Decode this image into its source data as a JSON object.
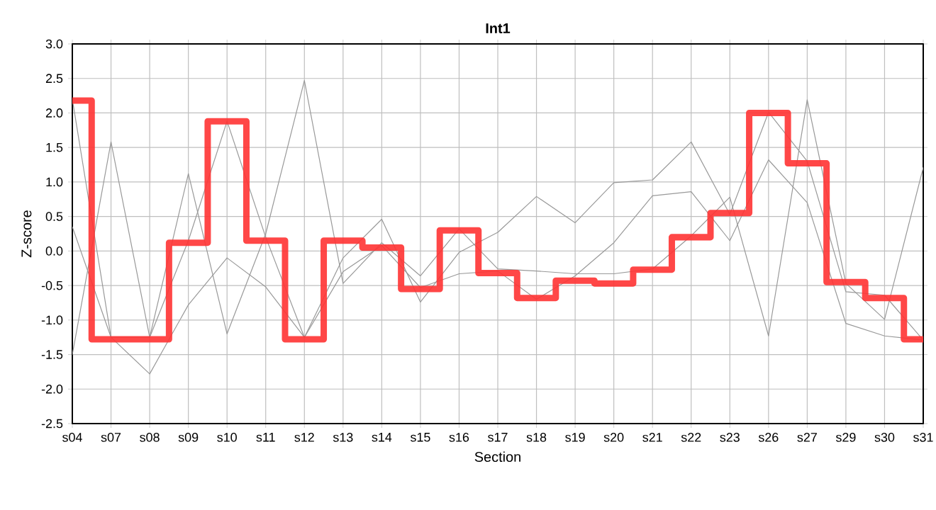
{
  "chart_data": {
    "type": "line",
    "title": "Int1",
    "xlabel": "Section",
    "ylabel": "Z-score",
    "categories": [
      "s04",
      "s07",
      "s08",
      "s09",
      "s10",
      "s11",
      "s12",
      "s13",
      "s14",
      "s15",
      "s16",
      "s17",
      "s18",
      "s19",
      "s20",
      "s21",
      "s22",
      "s23",
      "s26",
      "s27",
      "s29",
      "s30",
      "s31"
    ],
    "series": [
      {
        "color": "#999999",
        "values": [
          2.2,
          -1.25,
          -1.25,
          1.12,
          -1.2,
          0.25,
          2.47,
          -0.47,
          0.12,
          -0.36,
          0.32,
          -0.26,
          -0.29,
          -0.33,
          -0.33,
          -0.26,
          0.22,
          0.78,
          -1.23,
          2.19,
          -0.47,
          -0.99,
          1.21
        ]
      },
      {
        "color": "#999999",
        "values": [
          0.35,
          -1.25,
          -1.78,
          -0.78,
          -0.1,
          -0.52,
          -1.25,
          -0.1,
          0.46,
          -0.74,
          -0.02,
          0.27,
          0.79,
          0.41,
          0.99,
          1.03,
          1.58,
          0.53,
          2.01,
          1.3,
          -0.59,
          -0.64,
          -1.29
        ]
      },
      {
        "color": "#999999",
        "values": [
          -1.5,
          1.58,
          -1.25,
          0.15,
          1.88,
          0.2,
          -1.25,
          -0.3,
          0.08,
          -0.53,
          -0.33,
          -0.29,
          -0.7,
          -0.36,
          0.12,
          0.8,
          0.86,
          0.15,
          1.32,
          0.7,
          -1.05,
          -1.23,
          -1.29
        ]
      },
      {
        "type": "step",
        "color": "#ff3333",
        "values": [
          2.18,
          -1.28,
          -1.28,
          0.12,
          1.88,
          0.15,
          -1.28,
          0.15,
          0.05,
          -0.55,
          0.3,
          -0.32,
          -0.68,
          -0.43,
          -0.47,
          -0.27,
          0.2,
          0.55,
          2.0,
          1.27,
          -0.45,
          -0.68,
          -1.28
        ]
      }
    ],
    "ylim": [
      -2.5,
      3.0
    ],
    "yticks": [
      {
        "value": -2.5,
        "label": "-2.5"
      },
      {
        "value": -2.0,
        "label": "-2.0"
      },
      {
        "value": -1.5,
        "label": "-1.5"
      },
      {
        "value": -1.0,
        "label": "-1.0"
      },
      {
        "value": -0.5,
        "label": "-0.5"
      },
      {
        "value": 0.0,
        "label": "0.0"
      },
      {
        "value": 0.5,
        "label": "0.5"
      },
      {
        "value": 1.0,
        "label": "1.0"
      },
      {
        "value": 1.5,
        "label": "1.5"
      },
      {
        "value": 2.0,
        "label": "2.0"
      },
      {
        "value": 2.5,
        "label": "2.5"
      },
      {
        "value": 3.0,
        "label": "3.0"
      }
    ],
    "grid": true,
    "legend": false,
    "marker": "none",
    "line_style": "solid"
  }
}
